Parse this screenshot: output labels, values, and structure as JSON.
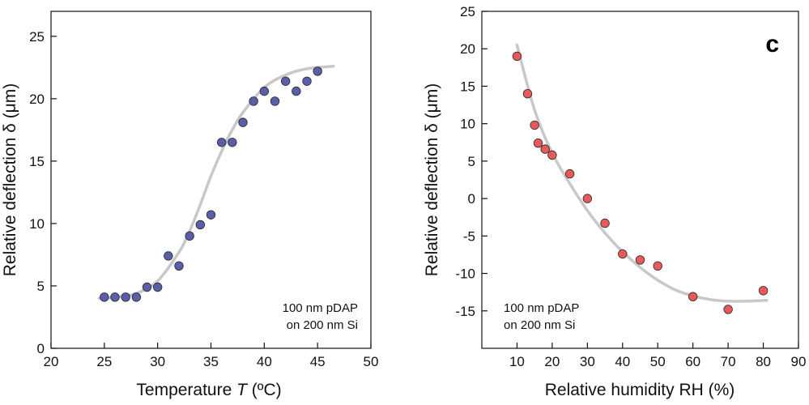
{
  "chart_data": [
    {
      "type": "scatter",
      "panel_label": "",
      "xlabel_prefix": "Temperature ",
      "xlabel_var": "T",
      "xlabel_suffix": " (ºC)",
      "ylabel": "Relative deflection δ (μm)",
      "xlim": [
        20,
        50
      ],
      "ylim": [
        0,
        27
      ],
      "xticks": [
        20,
        25,
        30,
        35,
        40,
        45,
        50
      ],
      "yticks": [
        0,
        5,
        10,
        15,
        20,
        25
      ],
      "marker_color": "#5a5ea8",
      "fit_color": "#c8c8c8",
      "annotation": [
        "100 nm pDAP",
        "on 200 nm Si"
      ],
      "series": [
        {
          "name": "data",
          "x": [
            25,
            26,
            27,
            28,
            29,
            30,
            31,
            32,
            33,
            34,
            35,
            36,
            37,
            38,
            39,
            40,
            41,
            42,
            43,
            44,
            45
          ],
          "y": [
            4.1,
            4.1,
            4.1,
            4.1,
            4.9,
            4.9,
            7.4,
            6.6,
            9.0,
            9.9,
            10.7,
            16.5,
            16.5,
            18.1,
            19.8,
            20.6,
            19.8,
            21.4,
            20.6,
            21.4,
            22.2
          ]
        }
      ],
      "fit": {
        "name": "sigmoid fit",
        "x": [
          24.5,
          26,
          28,
          30,
          32,
          33,
          34,
          35,
          36,
          37,
          38,
          40,
          42,
          44,
          46.5
        ],
        "y": [
          4.0,
          4.1,
          4.4,
          5.4,
          7.7,
          9.4,
          11.5,
          13.8,
          15.8,
          17.5,
          18.9,
          20.9,
          21.9,
          22.4,
          22.6
        ]
      }
    },
    {
      "type": "scatter",
      "panel_label": "c",
      "xlabel": "Relative humidity RH (%)",
      "ylabel": "Relative deflection δ (μm)",
      "xlim": [
        0,
        90
      ],
      "ylim": [
        -20,
        25
      ],
      "xticks": [
        10,
        20,
        30,
        40,
        50,
        60,
        70,
        80,
        90
      ],
      "yticks": [
        -15,
        -10,
        -5,
        0,
        5,
        10,
        15,
        20,
        25
      ],
      "marker_color": "#e85a5a",
      "fit_color": "#c8c8c8",
      "annotation": [
        "100 nm pDAP",
        "on 200 nm Si"
      ],
      "series": [
        {
          "name": "data",
          "x": [
            10,
            13,
            15,
            16,
            18,
            20,
            25,
            30,
            35,
            40,
            45,
            50,
            60,
            70,
            80
          ],
          "y": [
            19.0,
            14.0,
            9.8,
            7.4,
            6.6,
            5.8,
            3.3,
            0.0,
            -3.3,
            -7.4,
            -8.2,
            -9.0,
            -13.1,
            -14.8,
            -12.3
          ]
        }
      ],
      "fit": {
        "name": "polynomial fit",
        "x": [
          10,
          15,
          20,
          25,
          30,
          35,
          40,
          45,
          50,
          55,
          60,
          65,
          70,
          75,
          81
        ],
        "y": [
          20.5,
          11.8,
          6.1,
          2.0,
          -1.6,
          -4.6,
          -7.1,
          -9.2,
          -10.9,
          -12.2,
          -13.0,
          -13.5,
          -13.7,
          -13.7,
          -13.6
        ]
      }
    }
  ]
}
